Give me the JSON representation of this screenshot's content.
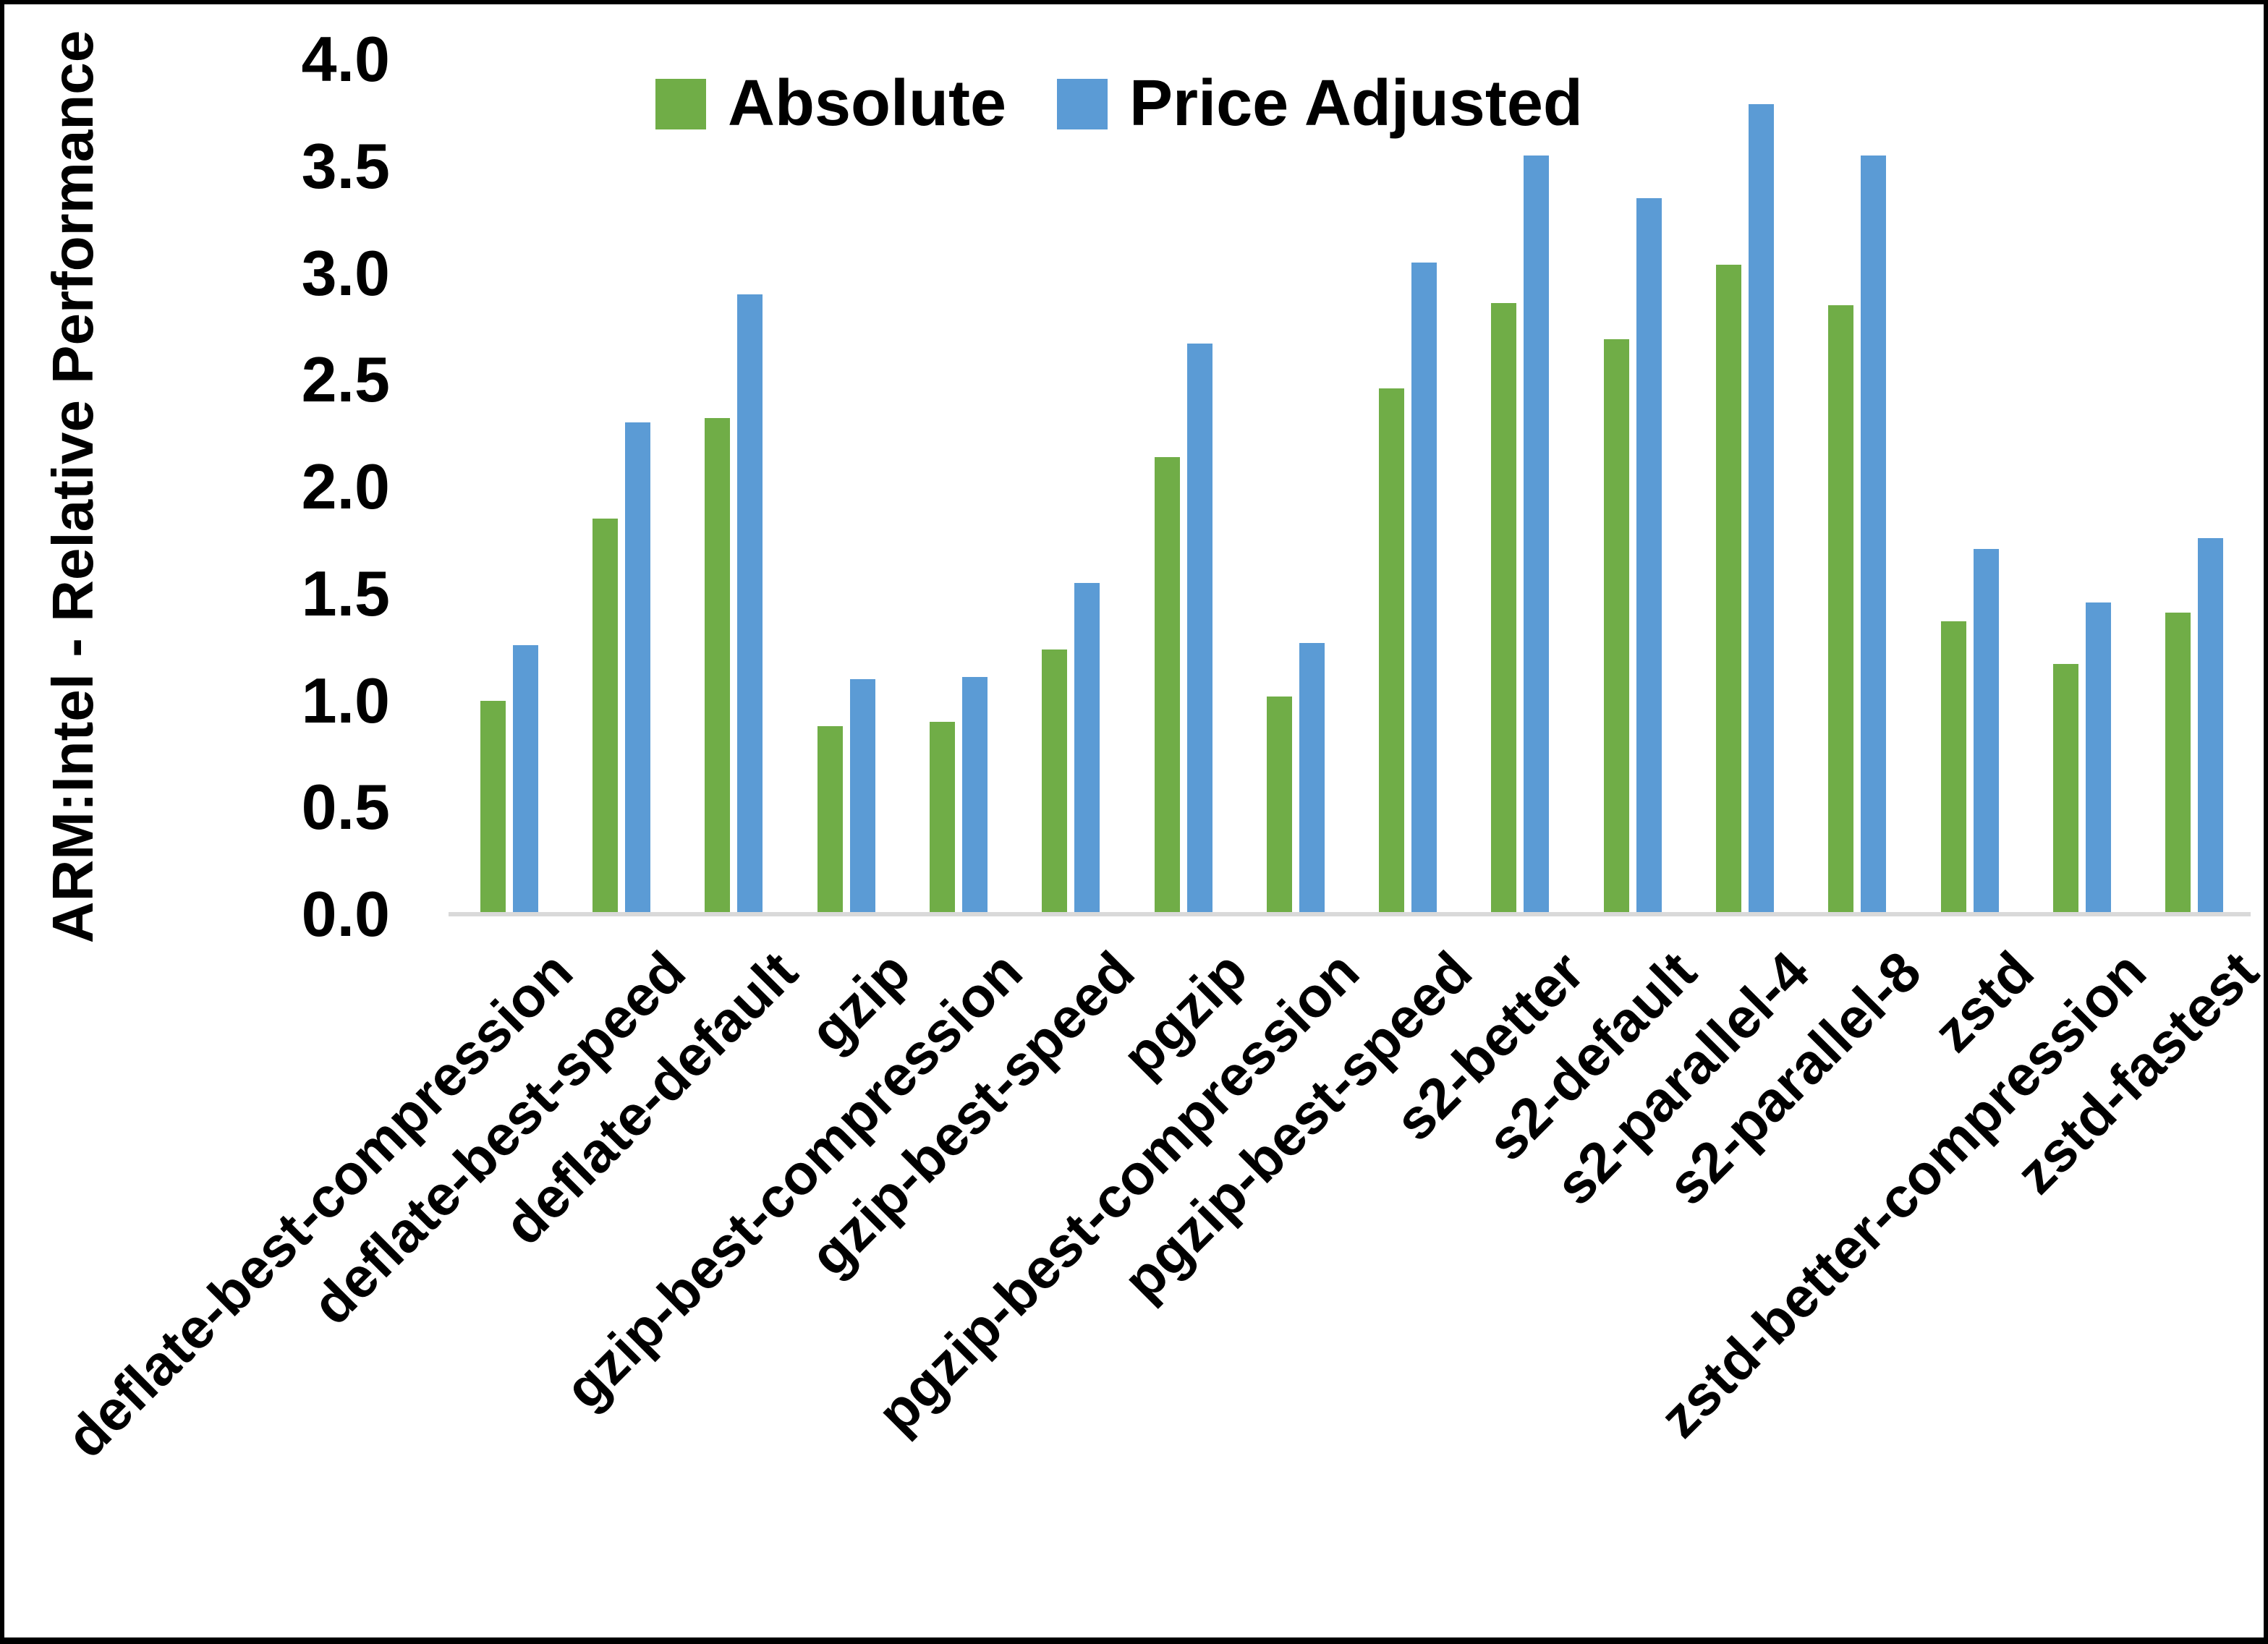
{
  "chart_data": {
    "type": "bar",
    "title": "",
    "xlabel": "",
    "ylabel": "ARM:Intel - Relative Performance",
    "ylim": [
      0,
      4.0
    ],
    "ytick_step": 0.5,
    "yticks": [
      "4.0",
      "3.5",
      "3.0",
      "2.5",
      "2.0",
      "1.5",
      "1.0",
      "0.5",
      "0.0"
    ],
    "grid": false,
    "legend_position": "top-center",
    "axis_line_color": "#D9D9D9",
    "categories": [
      "deflate-best-compression",
      "deflate-best-speed",
      "deflate-default",
      "gzip",
      "gzip-best-compression",
      "gzip-best-speed",
      "pgzip",
      "pgzip-best-compression",
      "pgzip-best-speed",
      "s2-better",
      "s2-default",
      "s2-parallel-4",
      "s2-parallel-8",
      "zstd",
      "zstd-better-compression",
      "zstd-fastest"
    ],
    "series": [
      {
        "name": "Absolute",
        "color": "#70AD47",
        "values": [
          1.0,
          1.85,
          2.32,
          0.88,
          0.9,
          1.24,
          2.14,
          1.02,
          2.46,
          2.86,
          2.69,
          3.04,
          2.85,
          1.37,
          1.17,
          1.41
        ]
      },
      {
        "name": "Price Adjusted",
        "color": "#5B9BD5",
        "values": [
          1.26,
          2.3,
          2.9,
          1.1,
          1.11,
          1.55,
          2.67,
          1.27,
          3.05,
          3.55,
          3.35,
          3.79,
          3.55,
          1.71,
          1.46,
          1.76
        ]
      }
    ]
  }
}
